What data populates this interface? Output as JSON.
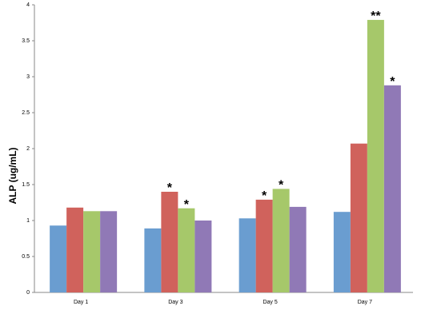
{
  "chart_data": {
    "type": "bar",
    "y_label": "ALP (ug/mL)",
    "categories": [
      "Day 1",
      "Day 3",
      "Day 5",
      "Day 7"
    ],
    "series": [
      {
        "color": "#6a9dd0",
        "values": [
          0.93,
          0.89,
          1.03,
          1.12
        ]
      },
      {
        "color": "#d0625c",
        "values": [
          1.18,
          1.4,
          1.29,
          2.07
        ],
        "annotations": [
          null,
          "*",
          "*",
          null
        ]
      },
      {
        "color": "#a6c86a",
        "values": [
          1.13,
          1.17,
          1.44,
          3.79
        ],
        "annotations": [
          null,
          "*",
          "*",
          "**"
        ]
      },
      {
        "color": "#9079b6",
        "values": [
          1.13,
          1.0,
          1.19,
          2.88
        ],
        "annotations": [
          null,
          null,
          null,
          "*"
        ]
      }
    ],
    "ylim": [
      0,
      4
    ],
    "yticks": [
      0,
      0.5,
      1,
      1.5,
      2,
      2.5,
      3,
      3.5,
      4
    ],
    "grid": false
  }
}
